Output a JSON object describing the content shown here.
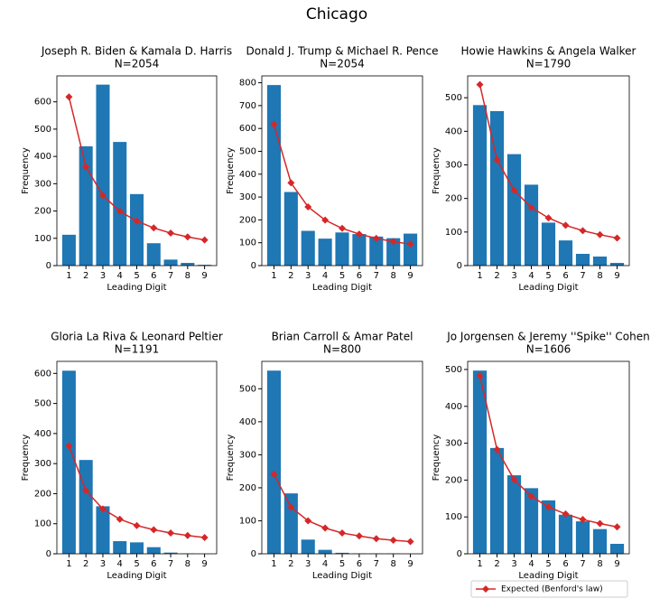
{
  "title": "Chicago",
  "legend": {
    "label": "Expected (Benford's law)",
    "color": "#d62728"
  },
  "chart_data": [
    {
      "type": "bar",
      "title": "Joseph R. Biden & Kamala D. Harris",
      "subtitle": "N=2054",
      "xlabel": "Leading Digit",
      "ylabel": "Frequency",
      "categories": [
        "1",
        "2",
        "3",
        "4",
        "5",
        "6",
        "7",
        "8",
        "9"
      ],
      "values": [
        113,
        437,
        663,
        453,
        262,
        82,
        22,
        10,
        3
      ],
      "color": "#1f77b4",
      "expected": [
        618,
        362,
        257,
        199,
        163,
        138,
        119,
        105,
        94
      ],
      "ylim": [
        0,
        695
      ],
      "yticks": [
        0,
        100,
        200,
        300,
        400,
        500,
        600
      ]
    },
    {
      "type": "bar",
      "title": "Donald J. Trump & Michael R. Pence",
      "subtitle": "N=2054",
      "xlabel": "Leading Digit",
      "ylabel": "Frequency",
      "categories": [
        "1",
        "2",
        "3",
        "4",
        "5",
        "6",
        "7",
        "8",
        "9"
      ],
      "values": [
        790,
        322,
        152,
        118,
        145,
        138,
        127,
        120,
        140
      ],
      "color": "#1f77b4",
      "expected": [
        618,
        362,
        257,
        199,
        163,
        138,
        119,
        105,
        94
      ],
      "ylim": [
        0,
        830
      ],
      "yticks": [
        0,
        100,
        200,
        300,
        400,
        500,
        600,
        700,
        800
      ]
    },
    {
      "type": "bar",
      "title": "Howie Hawkins & Angela Walker",
      "subtitle": "N=1790",
      "xlabel": "Leading Digit",
      "ylabel": "Frequency",
      "categories": [
        "1",
        "2",
        "3",
        "4",
        "5",
        "6",
        "7",
        "8",
        "9"
      ],
      "values": [
        478,
        460,
        332,
        241,
        128,
        75,
        35,
        27,
        8
      ],
      "color": "#1f77b4",
      "expected": [
        539,
        315,
        224,
        173,
        142,
        120,
        104,
        92,
        82
      ],
      "ylim": [
        0,
        565
      ],
      "yticks": [
        0,
        100,
        200,
        300,
        400,
        500
      ]
    },
    {
      "type": "bar",
      "title": "Gloria La Riva & Leonard Peltier",
      "subtitle": "N=1191",
      "xlabel": "Leading Digit",
      "ylabel": "Frequency",
      "categories": [
        "1",
        "2",
        "3",
        "4",
        "5",
        "6",
        "7",
        "8",
        "9"
      ],
      "values": [
        609,
        312,
        158,
        42,
        38,
        22,
        4,
        1,
        0
      ],
      "color": "#1f77b4",
      "expected": [
        359,
        210,
        149,
        115,
        94,
        80,
        69,
        61,
        54
      ],
      "ylim": [
        0,
        640
      ],
      "yticks": [
        0,
        100,
        200,
        300,
        400,
        500,
        600
      ]
    },
    {
      "type": "bar",
      "title": "Brian Carroll & Amar Patel",
      "subtitle": "N=800",
      "xlabel": "Leading Digit",
      "ylabel": "Frequency",
      "categories": [
        "1",
        "2",
        "3",
        "4",
        "5",
        "6",
        "7",
        "8",
        "9"
      ],
      "values": [
        555,
        183,
        43,
        12,
        3,
        1,
        1,
        1,
        0
      ],
      "color": "#1f77b4",
      "expected": [
        241,
        141,
        100,
        78,
        63,
        54,
        46,
        41,
        37
      ],
      "ylim": [
        0,
        583
      ],
      "yticks": [
        0,
        100,
        200,
        300,
        400,
        500
      ]
    },
    {
      "type": "bar",
      "title": "Jo Jorgensen & Jeremy ''Spike'' Cohen",
      "subtitle": "N=1606",
      "xlabel": "Leading Digit",
      "ylabel": "Frequency",
      "categories": [
        "1",
        "2",
        "3",
        "4",
        "5",
        "6",
        "7",
        "8",
        "9"
      ],
      "values": [
        497,
        287,
        213,
        178,
        145,
        106,
        88,
        67,
        27
      ],
      "color": "#1f77b4",
      "expected": [
        483,
        283,
        201,
        156,
        127,
        108,
        93,
        82,
        73
      ],
      "ylim": [
        0,
        522
      ],
      "yticks": [
        0,
        100,
        200,
        300,
        400,
        500
      ]
    }
  ]
}
